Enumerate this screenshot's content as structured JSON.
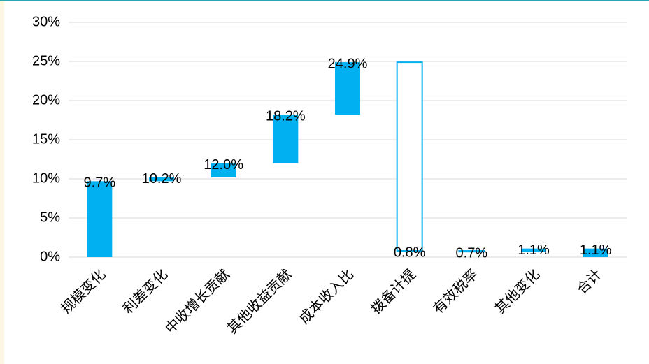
{
  "chart_data": {
    "type": "waterfall",
    "categories": [
      "规模变化",
      "利差变化",
      "中收增长贡献",
      "其他收益贡献",
      "成本收入比",
      "拨备计提",
      "有效税率",
      "其他变化",
      "合计"
    ],
    "starts": [
      0,
      9.7,
      10.2,
      12.0,
      18.2,
      24.9,
      0.8,
      0.7,
      0
    ],
    "values": [
      9.7,
      10.2,
      12.0,
      18.2,
      24.9,
      0.8,
      0.7,
      1.1,
      1.1
    ],
    "value_labels": [
      "9.7%",
      "10.2%",
      "12.0%",
      "18.2%",
      "24.9%",
      "0.8%",
      "0.7%",
      "1.1%",
      "1.1%"
    ],
    "color": "#00b0f0",
    "ylim": [
      0,
      30
    ],
    "yticks": [
      {
        "value": 0,
        "label": "0%"
      },
      {
        "value": 5,
        "label": "5%"
      },
      {
        "value": 10,
        "label": "10%"
      },
      {
        "value": 15,
        "label": "15%"
      },
      {
        "value": 20,
        "label": "20%"
      },
      {
        "value": 25,
        "label": "25%"
      },
      {
        "value": 30,
        "label": "30%"
      }
    ],
    "grid": true
  }
}
